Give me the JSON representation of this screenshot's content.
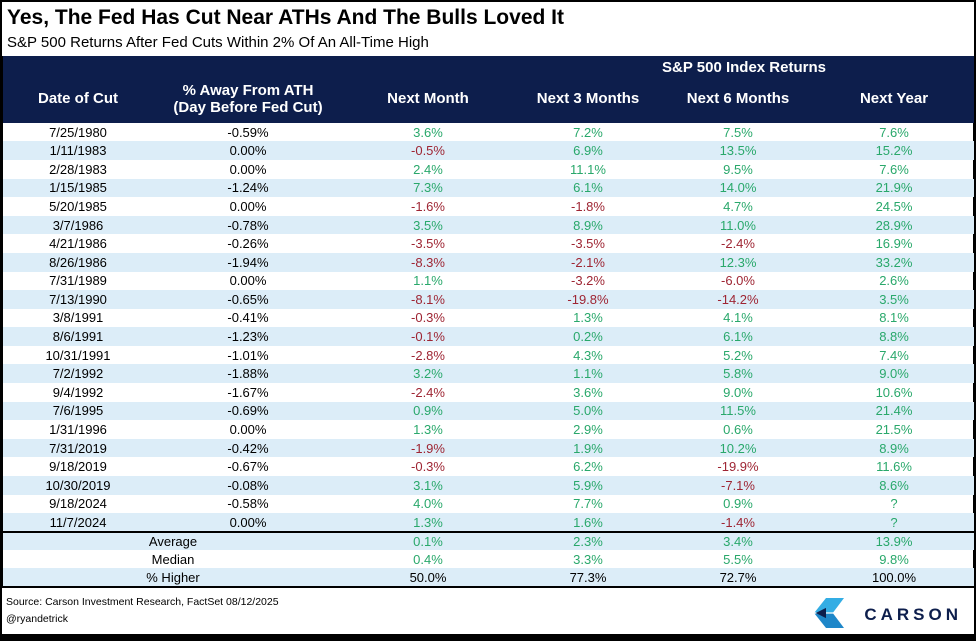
{
  "chart_data": {
    "type": "table",
    "title": "Yes, The Fed Has Cut Near ATHs And The Bulls Loved It",
    "subtitle": "S&P 500 Returns After Fed Cuts Within 2% Of An All-Time High",
    "group_header": "S&P 500 Index Returns",
    "columns": [
      {
        "label": "Date of Cut"
      },
      {
        "label": "% Away From ATH",
        "sublabel": "(Day Before Fed Cut)"
      },
      {
        "label": "Next Month"
      },
      {
        "label": "Next 3 Months"
      },
      {
        "label": "Next 6 Months"
      },
      {
        "label": "Next Year"
      }
    ],
    "rows": [
      [
        "7/25/1980",
        "-0.59%",
        "3.6%",
        "7.2%",
        "7.5%",
        "7.6%"
      ],
      [
        "1/11/1983",
        "0.00%",
        "-0.5%",
        "6.9%",
        "13.5%",
        "15.2%"
      ],
      [
        "2/28/1983",
        "0.00%",
        "2.4%",
        "11.1%",
        "9.5%",
        "7.6%"
      ],
      [
        "1/15/1985",
        "-1.24%",
        "7.3%",
        "6.1%",
        "14.0%",
        "21.9%"
      ],
      [
        "5/20/1985",
        "0.00%",
        "-1.6%",
        "-1.8%",
        "4.7%",
        "24.5%"
      ],
      [
        "3/7/1986",
        "-0.78%",
        "3.5%",
        "8.9%",
        "11.0%",
        "28.9%"
      ],
      [
        "4/21/1986",
        "-0.26%",
        "-3.5%",
        "-3.5%",
        "-2.4%",
        "16.9%"
      ],
      [
        "8/26/1986",
        "-1.94%",
        "-8.3%",
        "-2.1%",
        "12.3%",
        "33.2%"
      ],
      [
        "7/31/1989",
        "0.00%",
        "1.1%",
        "-3.2%",
        "-6.0%",
        "2.6%"
      ],
      [
        "7/13/1990",
        "-0.65%",
        "-8.1%",
        "-19.8%",
        "-14.2%",
        "3.5%"
      ],
      [
        "3/8/1991",
        "-0.41%",
        "-0.3%",
        "1.3%",
        "4.1%",
        "8.1%"
      ],
      [
        "8/6/1991",
        "-1.23%",
        "-0.1%",
        "0.2%",
        "6.1%",
        "8.8%"
      ],
      [
        "10/31/1991",
        "-1.01%",
        "-2.8%",
        "4.3%",
        "5.2%",
        "7.4%"
      ],
      [
        "7/2/1992",
        "-1.88%",
        "3.2%",
        "1.1%",
        "5.8%",
        "9.0%"
      ],
      [
        "9/4/1992",
        "-1.67%",
        "-2.4%",
        "3.6%",
        "9.0%",
        "10.6%"
      ],
      [
        "7/6/1995",
        "-0.69%",
        "0.9%",
        "5.0%",
        "11.5%",
        "21.4%"
      ],
      [
        "1/31/1996",
        "0.00%",
        "1.3%",
        "2.9%",
        "0.6%",
        "21.5%"
      ],
      [
        "7/31/2019",
        "-0.42%",
        "-1.9%",
        "1.9%",
        "10.2%",
        "8.9%"
      ],
      [
        "9/18/2019",
        "-0.67%",
        "-0.3%",
        "6.2%",
        "-19.9%",
        "11.6%"
      ],
      [
        "10/30/2019",
        "-0.08%",
        "3.1%",
        "5.9%",
        "-7.1%",
        "8.6%"
      ],
      [
        "9/18/2024",
        "-0.58%",
        "4.0%",
        "7.7%",
        "0.9%",
        "?"
      ],
      [
        "11/7/2024",
        "0.00%",
        "1.3%",
        "1.6%",
        "-1.4%",
        "?"
      ]
    ],
    "summary": [
      {
        "label": "Average",
        "values": [
          "0.1%",
          "2.3%",
          "3.4%",
          "13.9%"
        ],
        "value_color": "green"
      },
      {
        "label": "Median",
        "values": [
          "0.4%",
          "3.3%",
          "5.5%",
          "9.8%"
        ],
        "value_color": "green"
      },
      {
        "label": "% Higher",
        "values": [
          "50.0%",
          "77.3%",
          "72.7%",
          "100.0%"
        ],
        "value_color": "black"
      }
    ]
  },
  "footer": {
    "source": "Source: Carson Investment Research, FactSet 08/12/2025",
    "handle": "@ryandetrick",
    "brand": "CARSON"
  },
  "colors": {
    "header_bg": "#0d1e4c",
    "row_alt": "#dcedf8",
    "positive": "#29a86b",
    "negative": "#9e2533",
    "brand_light": "#33ade4",
    "brand_mid": "#1e87c9"
  }
}
